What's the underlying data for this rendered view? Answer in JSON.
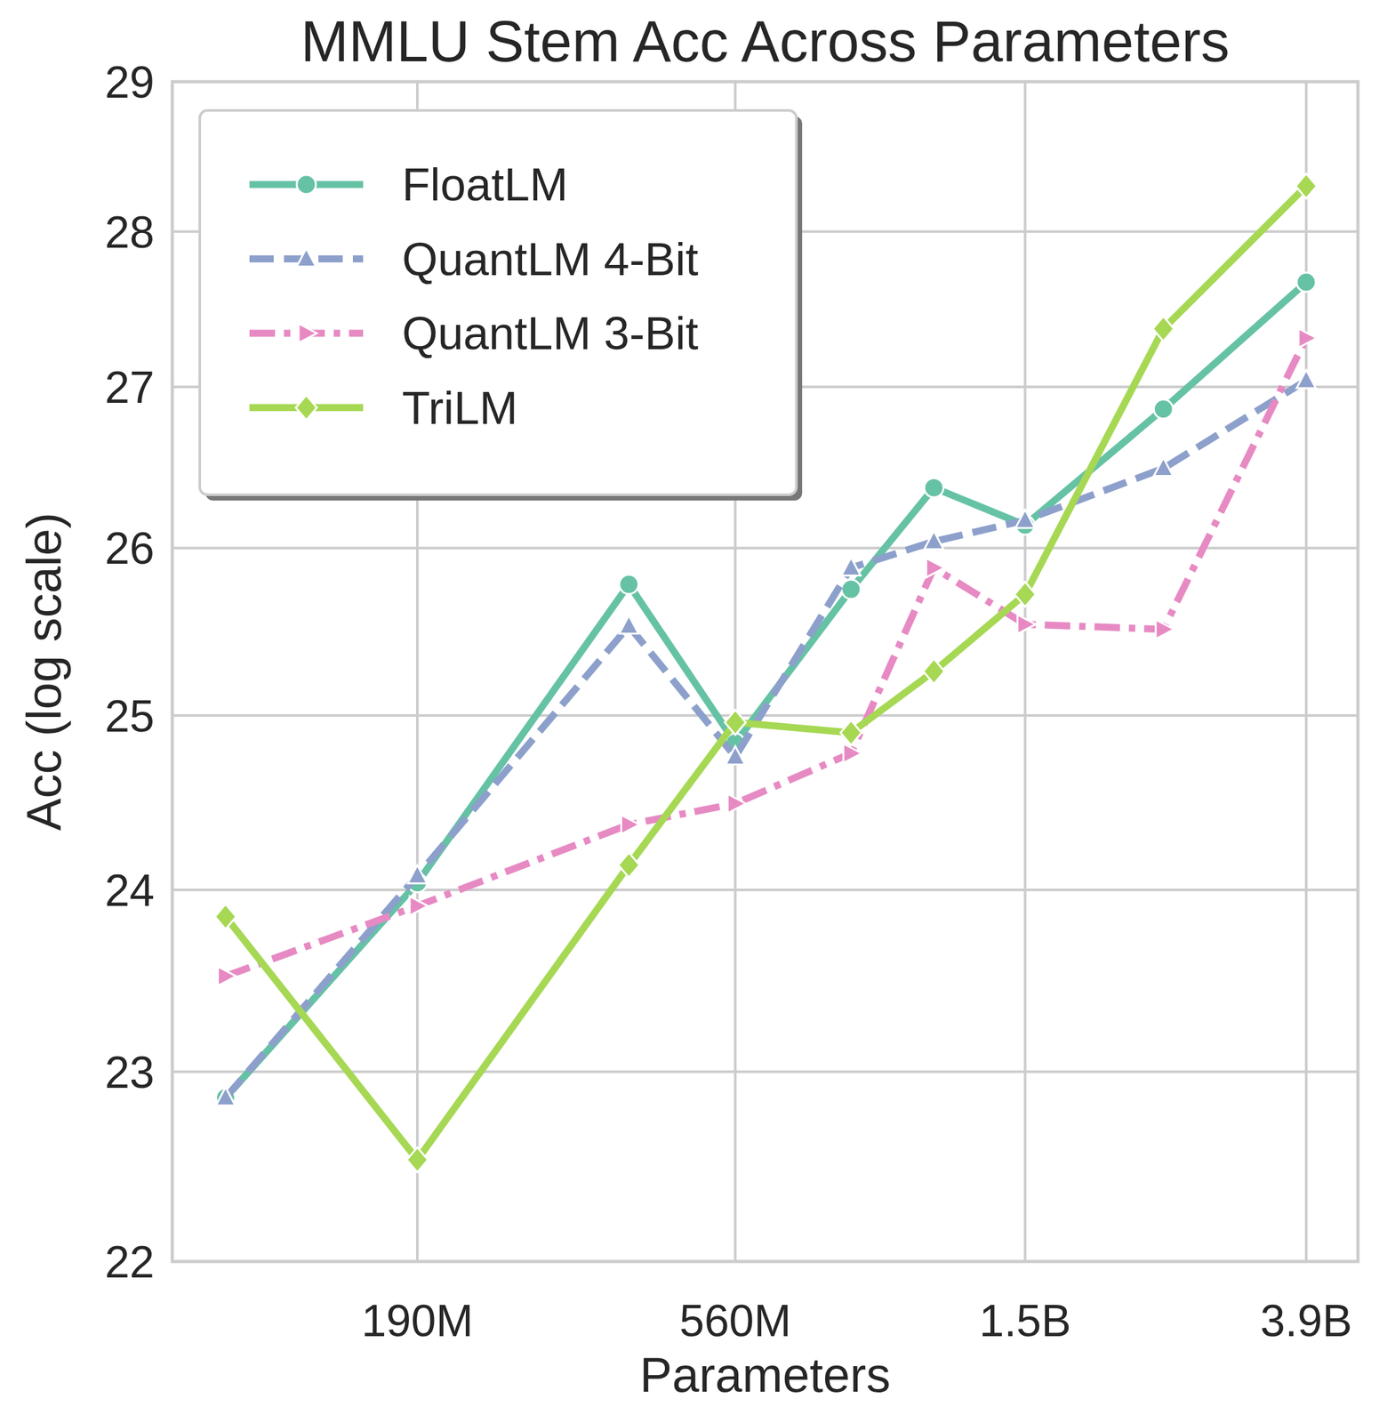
{
  "chart_data": {
    "type": "line",
    "title": "MMLU Stem Acc Across Parameters",
    "x_label": "Parameters",
    "y_label": "Acc (log scale)",
    "x": [
      99000000,
      190000000,
      390000000,
      560000000,
      830000000,
      1100000000,
      1500000000,
      2400000000,
      3900000000
    ],
    "series": [
      {
        "name": "FloatLM",
        "color": "#66c2a5",
        "marker": "circle",
        "line_style": "solid",
        "values": [
          22.86,
          24.04,
          25.78,
          24.84,
          25.75,
          26.37,
          26.14,
          26.86,
          27.67
        ]
      },
      {
        "name": "QuantLM 4-Bit",
        "color": "#8da0cb",
        "marker": "triangle",
        "line_style": "dashed",
        "values": [
          22.86,
          24.08,
          25.53,
          24.76,
          25.88,
          26.04,
          26.17,
          26.49,
          27.04
        ]
      },
      {
        "name": "QuantLM 3-Bit",
        "color": "#e78ac3",
        "marker": "triangle-right",
        "line_style": "dashdot",
        "values": [
          23.52,
          23.91,
          24.37,
          24.49,
          24.78,
          25.88,
          25.54,
          25.51,
          27.31
        ]
      },
      {
        "name": "TriLM",
        "color": "#a6d854",
        "marker": "diamond",
        "line_style": "solid",
        "values": [
          23.85,
          22.53,
          24.14,
          24.96,
          24.9,
          25.26,
          25.72,
          27.37,
          28.3
        ]
      }
    ],
    "xlim": [
      82600000,
      4650000000
    ],
    "xticks": [
      {
        "value": 190000000,
        "label": "190M"
      },
      {
        "value": 560000000,
        "label": "560M"
      },
      {
        "value": 1500000000,
        "label": "1.5B"
      },
      {
        "value": 3900000000,
        "label": "3.9B"
      }
    ],
    "ylim": [
      22,
      29
    ],
    "yticks": [
      22,
      23,
      24,
      25,
      26,
      27,
      28,
      29
    ],
    "log": true,
    "grid": true,
    "legend": "upper left"
  }
}
